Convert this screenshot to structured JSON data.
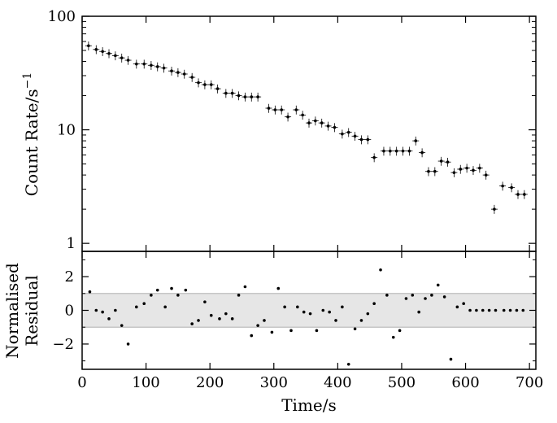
{
  "chart_data": [
    {
      "type": "scatter",
      "xlabel": "Time/s",
      "ylabel": "Count Rate/s",
      "ylabel_superscript": "−1",
      "yscale": "log",
      "xlim": [
        0,
        710
      ],
      "ylim": [
        0.85,
        100
      ],
      "x_ticks": [
        "0",
        "100",
        "200",
        "300",
        "400",
        "500",
        "600",
        "700"
      ],
      "y_ticks": [
        "1",
        "10",
        "100"
      ],
      "series": [
        {
          "x": [
            10,
            22,
            32,
            42,
            52,
            62,
            72,
            85,
            97,
            108,
            118,
            128,
            140,
            150,
            160,
            172,
            182,
            192,
            202,
            212,
            225,
            235,
            245,
            255,
            265,
            275,
            292,
            302,
            312,
            322,
            335,
            345,
            355,
            365,
            375,
            385,
            395,
            407,
            417,
            427,
            437,
            447,
            457,
            472,
            482,
            492,
            502,
            512,
            522,
            532,
            542,
            552,
            562,
            572,
            582,
            592,
            602,
            612,
            622,
            632,
            645,
            658,
            672,
            682,
            692
          ],
          "y": [
            55,
            51,
            49,
            47,
            45,
            43,
            41,
            38,
            38,
            37,
            36,
            35,
            33,
            32,
            31,
            29,
            26,
            25,
            25,
            23,
            21,
            21,
            20,
            19.5,
            19.5,
            19.5,
            15.5,
            15,
            15,
            13,
            15,
            13.5,
            11.5,
            12,
            11.5,
            10.8,
            10.5,
            9.2,
            9.5,
            8.8,
            8.2,
            8.2,
            5.7,
            6.5,
            6.5,
            6.5,
            6.5,
            6.5,
            8,
            6.3,
            4.3,
            4.3,
            5.3,
            5.2,
            4.2,
            4.5,
            4.6,
            4.4,
            4.6,
            4.0,
            2.0,
            3.2,
            3.1,
            2.7,
            2.7
          ]
        }
      ]
    },
    {
      "type": "scatter",
      "xlabel": "Time/s",
      "ylabel": "Normalised Residual",
      "xlim": [
        0,
        710
      ],
      "ylim": [
        -3.5,
        3.5
      ],
      "band": [
        -1,
        1
      ],
      "x_ticks": [
        "0",
        "100",
        "200",
        "300",
        "400",
        "500",
        "600",
        "700"
      ],
      "y_ticks": [
        "2",
        "0",
        "−2"
      ],
      "series": [
        {
          "x": [
            12,
            22,
            32,
            42,
            52,
            62,
            72,
            85,
            97,
            108,
            118,
            130,
            140,
            150,
            162,
            172,
            182,
            192,
            202,
            215,
            225,
            235,
            245,
            255,
            265,
            275,
            285,
            297,
            307,
            317,
            327,
            337,
            347,
            357,
            367,
            377,
            387,
            397,
            407,
            417,
            427,
            437,
            447,
            457,
            467,
            477,
            487,
            497,
            507,
            517,
            527,
            537,
            547,
            557,
            567,
            577,
            587,
            597,
            607,
            617,
            627,
            637,
            647,
            660,
            670,
            680,
            690
          ],
          "y": [
            1.1,
            0,
            -0.1,
            -0.5,
            0,
            -0.9,
            -2.0,
            0.2,
            0.4,
            0.9,
            1.2,
            0.2,
            1.3,
            0.9,
            1.2,
            -0.8,
            -0.6,
            0.5,
            -0.3,
            -0.5,
            -0.2,
            -0.5,
            0.9,
            1.4,
            -1.5,
            -0.9,
            -0.6,
            -1.3,
            1.3,
            0.2,
            -1.2,
            0.2,
            -0.1,
            -0.2,
            -1.2,
            0,
            -0.1,
            -0.6,
            0.2,
            -3.2,
            -1.1,
            -0.6,
            -0.2,
            0.4,
            2.4,
            0.9,
            -1.6,
            -1.2,
            0.7,
            0.9,
            -0.1,
            0.7,
            0.9,
            1.5,
            0.8,
            -2.9,
            0.2,
            0.4,
            0,
            0,
            0,
            0,
            0,
            0,
            0,
            0,
            0
          ]
        }
      ]
    }
  ]
}
